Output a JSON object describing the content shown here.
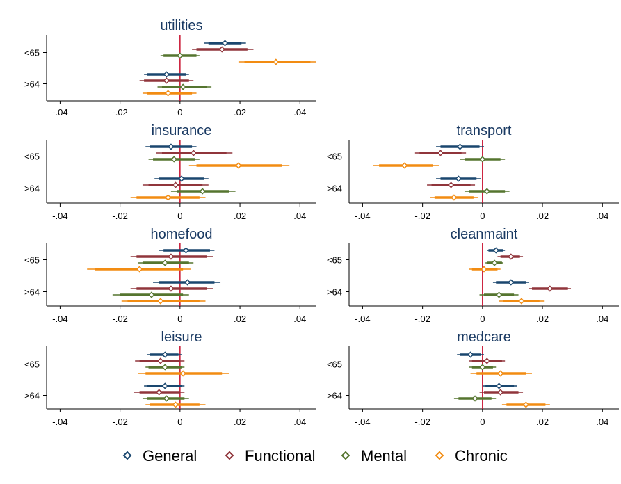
{
  "chart_data": {
    "type": "coefficient-plot",
    "categories": [
      "<65",
      ">64"
    ],
    "x_ticks": [
      -0.04,
      -0.02,
      0,
      0.02,
      0.04
    ],
    "x_tick_labels": [
      "-.04",
      "-.02",
      "0",
      ".02",
      ".04"
    ],
    "xlim": [
      -0.0445,
      0.0455
    ],
    "reference_line": 0,
    "colors": {
      "General": "#1a476f",
      "Functional": "#90353b",
      "Mental": "#55752f",
      "Chronic": "#f28c12",
      "reference_line": "#c8102e"
    },
    "legend": {
      "position": "bottom",
      "entries": [
        "General",
        "Functional",
        "Mental",
        "Chronic"
      ]
    },
    "panels": [
      {
        "title": "utilities",
        "groups": [
          {
            "category": "<65",
            "series": [
              {
                "name": "General",
                "estimate": 0.015,
                "ci95": [
                  0.008,
                  0.022
                ],
                "ci90": [
                  0.0095,
                  0.0205
                ]
              },
              {
                "name": "Functional",
                "estimate": 0.014,
                "ci95": [
                  0.004,
                  0.0245
                ],
                "ci90": [
                  0.0055,
                  0.0225
                ]
              },
              {
                "name": "Mental",
                "estimate": 0,
                "ci95": [
                  -0.0065,
                  0.0065
                ],
                "ci90": [
                  -0.0055,
                  0.0055
                ]
              },
              {
                "name": "Chronic",
                "estimate": 0.032,
                "ci95": [
                  0.0195,
                  0.0455
                ],
                "ci90": [
                  0.0215,
                  0.0435
                ]
              }
            ]
          },
          {
            "category": ">64",
            "series": [
              {
                "name": "General",
                "estimate": -0.0045,
                "ci95": [
                  -0.012,
                  0.003
                ],
                "ci90": [
                  -0.011,
                  0.002
                ]
              },
              {
                "name": "Functional",
                "estimate": -0.0045,
                "ci95": [
                  -0.0135,
                  0.0045
                ],
                "ci90": [
                  -0.012,
                  0.003
                ]
              },
              {
                "name": "Mental",
                "estimate": 0.001,
                "ci95": [
                  -0.0075,
                  0.0105
                ],
                "ci90": [
                  -0.006,
                  0.009
                ]
              },
              {
                "name": "Chronic",
                "estimate": -0.004,
                "ci95": [
                  -0.0125,
                  0.0055
                ],
                "ci90": [
                  -0.011,
                  0.004
                ]
              }
            ]
          }
        ]
      },
      {
        "title": "insurance",
        "groups": [
          {
            "category": "<65",
            "series": [
              {
                "name": "General",
                "estimate": -0.003,
                "ci95": [
                  -0.0115,
                  0.0055
                ],
                "ci90": [
                  -0.01,
                  0.004
                ]
              },
              {
                "name": "Functional",
                "estimate": 0.0045,
                "ci95": [
                  -0.008,
                  0.0175
                ],
                "ci90": [
                  -0.006,
                  0.0155
                ]
              },
              {
                "name": "Mental",
                "estimate": -0.002,
                "ci95": [
                  -0.0105,
                  0.0065
                ],
                "ci90": [
                  -0.009,
                  0.005
                ]
              },
              {
                "name": "Chronic",
                "estimate": 0.0195,
                "ci95": [
                  0.003,
                  0.0365
                ],
                "ci90": [
                  0.0055,
                  0.034
                ]
              }
            ]
          },
          {
            "category": ">64",
            "series": [
              {
                "name": "General",
                "estimate": 0.0005,
                "ci95": [
                  -0.0085,
                  0.0095
                ],
                "ci90": [
                  -0.007,
                  0.008
                ]
              },
              {
                "name": "Functional",
                "estimate": -0.0015,
                "ci95": [
                  -0.0125,
                  0.0095
                ],
                "ci90": [
                  -0.0105,
                  0.0075
                ]
              },
              {
                "name": "Mental",
                "estimate": 0.0075,
                "ci95": [
                  -0.003,
                  0.0185
                ],
                "ci90": [
                  -0.001,
                  0.0165
                ]
              },
              {
                "name": "Chronic",
                "estimate": -0.004,
                "ci95": [
                  -0.0165,
                  0.0085
                ],
                "ci90": [
                  -0.0145,
                  0.0065
                ]
              }
            ]
          }
        ]
      },
      {
        "title": "transport",
        "groups": [
          {
            "category": "<65",
            "series": [
              {
                "name": "General",
                "estimate": -0.0075,
                "ci95": [
                  -0.0155,
                  0.0005
                ],
                "ci90": [
                  -0.014,
                  -0.001
                ]
              },
              {
                "name": "Functional",
                "estimate": -0.014,
                "ci95": [
                  -0.0225,
                  -0.0055
                ],
                "ci90": [
                  -0.021,
                  -0.007
                ]
              },
              {
                "name": "Mental",
                "estimate": 0,
                "ci95": [
                  -0.0075,
                  0.0075
                ],
                "ci90": [
                  -0.006,
                  0.006
                ]
              },
              {
                "name": "Chronic",
                "estimate": -0.026,
                "ci95": [
                  -0.0365,
                  -0.0145
                ],
                "ci90": [
                  -0.0345,
                  -0.0165
                ]
              }
            ]
          },
          {
            "category": ">64",
            "series": [
              {
                "name": "General",
                "estimate": -0.008,
                "ci95": [
                  -0.0155,
                  -0.0005
                ],
                "ci90": [
                  -0.014,
                  -0.002
                ]
              },
              {
                "name": "Functional",
                "estimate": -0.0105,
                "ci95": [
                  -0.0185,
                  -0.0025
                ],
                "ci90": [
                  -0.017,
                  -0.004
                ]
              },
              {
                "name": "Mental",
                "estimate": 0.0015,
                "ci95": [
                  -0.006,
                  0.009
                ],
                "ci90": [
                  -0.0045,
                  0.0075
                ]
              },
              {
                "name": "Chronic",
                "estimate": -0.0095,
                "ci95": [
                  -0.0175,
                  -0.0015
                ],
                "ci90": [
                  -0.016,
                  -0.003
                ]
              }
            ]
          }
        ]
      },
      {
        "title": "homefood",
        "groups": [
          {
            "category": "<65",
            "series": [
              {
                "name": "General",
                "estimate": 0.002,
                "ci95": [
                  -0.007,
                  0.0115
                ],
                "ci90": [
                  -0.0055,
                  0.01
                ]
              },
              {
                "name": "Functional",
                "estimate": -0.003,
                "ci95": [
                  -0.0165,
                  0.011
                ],
                "ci90": [
                  -0.0145,
                  0.009
                ]
              },
              {
                "name": "Mental",
                "estimate": -0.005,
                "ci95": [
                  -0.014,
                  0.0045
                ],
                "ci90": [
                  -0.0125,
                  0.003
                ]
              },
              {
                "name": "Chronic",
                "estimate": -0.0135,
                "ci95": [
                  -0.031,
                  0.0035
                ],
                "ci90": [
                  -0.0285,
                  0.001
                ]
              }
            ]
          },
          {
            "category": ">64",
            "series": [
              {
                "name": "General",
                "estimate": 0.0025,
                "ci95": [
                  -0.009,
                  0.0135
                ],
                "ci90": [
                  -0.007,
                  0.0115
                ]
              },
              {
                "name": "Functional",
                "estimate": -0.003,
                "ci95": [
                  -0.0165,
                  0.011
                ],
                "ci90": [
                  -0.0145,
                  0.009
                ]
              },
              {
                "name": "Mental",
                "estimate": -0.0095,
                "ci95": [
                  -0.0225,
                  0.003
                ],
                "ci90": [
                  -0.02,
                  0.001
                ]
              },
              {
                "name": "Chronic",
                "estimate": -0.0065,
                "ci95": [
                  -0.0195,
                  0.0085
                ],
                "ci90": [
                  -0.0175,
                  0.0065
                ]
              }
            ]
          }
        ]
      },
      {
        "title": "cleanmaint",
        "groups": [
          {
            "category": "<65",
            "series": [
              {
                "name": "General",
                "estimate": 0.0045,
                "ci95": [
                  0.0015,
                  0.0075
                ],
                "ci90": [
                  0.002,
                  0.007
                ]
              },
              {
                "name": "Functional",
                "estimate": 0.0095,
                "ci95": [
                  0.005,
                  0.0135
                ],
                "ci90": [
                  0.006,
                  0.0125
                ]
              },
              {
                "name": "Mental",
                "estimate": 0.004,
                "ci95": [
                  0.001,
                  0.007
                ],
                "ci90": [
                  0.0015,
                  0.0065
                ]
              },
              {
                "name": "Chronic",
                "estimate": 0.0005,
                "ci95": [
                  -0.0045,
                  0.006
                ],
                "ci90": [
                  -0.0035,
                  0.005
                ]
              }
            ]
          },
          {
            "category": ">64",
            "series": [
              {
                "name": "General",
                "estimate": 0.0095,
                "ci95": [
                  0.0035,
                  0.0155
                ],
                "ci90": [
                  0.0045,
                  0.0145
                ]
              },
              {
                "name": "Functional",
                "estimate": 0.0225,
                "ci95": [
                  0.0155,
                  0.0295
                ],
                "ci90": [
                  0.0165,
                  0.0285
                ]
              },
              {
                "name": "Mental",
                "estimate": 0.0055,
                "ci95": [
                  -0.001,
                  0.012
                ],
                "ci90": [
                  0.0005,
                  0.0105
                ]
              },
              {
                "name": "Chronic",
                "estimate": 0.013,
                "ci95": [
                  0.0055,
                  0.0205
                ],
                "ci90": [
                  0.007,
                  0.019
                ]
              }
            ]
          }
        ]
      },
      {
        "title": "leisure",
        "groups": [
          {
            "category": "<65",
            "series": [
              {
                "name": "General",
                "estimate": -0.005,
                "ci95": [
                  -0.011,
                  0.0005
                ],
                "ci90": [
                  -0.01,
                  -0.0005
                ]
              },
              {
                "name": "Functional",
                "estimate": -0.0065,
                "ci95": [
                  -0.015,
                  0.0015
                ],
                "ci90": [
                  -0.0135,
                  0
                ]
              },
              {
                "name": "Mental",
                "estimate": -0.005,
                "ci95": [
                  -0.0115,
                  0.0015
                ],
                "ci90": [
                  -0.0105,
                  0.0005
                ]
              },
              {
                "name": "Chronic",
                "estimate": 0.001,
                "ci95": [
                  -0.014,
                  0.0165
                ],
                "ci90": [
                  -0.0115,
                  0.014
                ]
              }
            ]
          },
          {
            "category": ">64",
            "series": [
              {
                "name": "General",
                "estimate": -0.005,
                "ci95": [
                  -0.012,
                  0.0015
                ],
                "ci90": [
                  -0.011,
                  0.0005
                ]
              },
              {
                "name": "Functional",
                "estimate": -0.007,
                "ci95": [
                  -0.0155,
                  0.0015
                ],
                "ci90": [
                  -0.0135,
                  0
                ]
              },
              {
                "name": "Mental",
                "estimate": -0.0045,
                "ci95": [
                  -0.0125,
                  0.003
                ],
                "ci90": [
                  -0.011,
                  0.0015
                ]
              },
              {
                "name": "Chronic",
                "estimate": -0.0015,
                "ci95": [
                  -0.0115,
                  0.0085
                ],
                "ci90": [
                  -0.01,
                  0.0065
                ]
              }
            ]
          }
        ]
      },
      {
        "title": "medcare",
        "groups": [
          {
            "category": "<65",
            "series": [
              {
                "name": "General",
                "estimate": -0.004,
                "ci95": [
                  -0.0085,
                  0.0005
                ],
                "ci90": [
                  -0.0075,
                  -0.0005
                ]
              },
              {
                "name": "Functional",
                "estimate": 0.0015,
                "ci95": [
                  -0.0045,
                  0.0075
                ],
                "ci90": [
                  -0.0035,
                  0.0065
                ]
              },
              {
                "name": "Mental",
                "estimate": 0,
                "ci95": [
                  -0.0045,
                  0.0045
                ],
                "ci90": [
                  -0.0035,
                  0.0035
                ]
              },
              {
                "name": "Chronic",
                "estimate": 0.006,
                "ci95": [
                  -0.004,
                  0.0165
                ],
                "ci90": [
                  -0.002,
                  0.0145
                ]
              }
            ]
          },
          {
            "category": ">64",
            "series": [
              {
                "name": "General",
                "estimate": 0.0055,
                "ci95": [
                  0,
                  0.0115
                ],
                "ci90": [
                  0.001,
                  0.0105
                ]
              },
              {
                "name": "Functional",
                "estimate": 0.006,
                "ci95": [
                  -0.001,
                  0.0135
                ],
                "ci90": [
                  0.0005,
                  0.012
                ]
              },
              {
                "name": "Mental",
                "estimate": -0.0025,
                "ci95": [
                  -0.0095,
                  0.0045
                ],
                "ci90": [
                  -0.008,
                  0.003
                ]
              },
              {
                "name": "Chronic",
                "estimate": 0.0145,
                "ci95": [
                  0.0065,
                  0.0225
                ],
                "ci90": [
                  0.008,
                  0.021
                ]
              }
            ]
          }
        ]
      }
    ]
  }
}
